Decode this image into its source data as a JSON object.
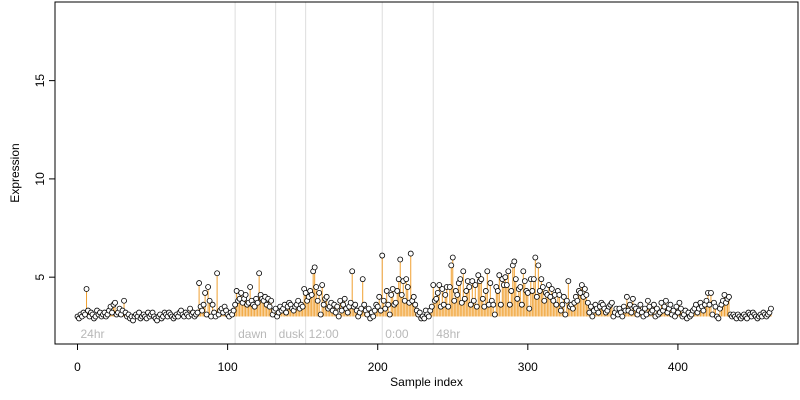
{
  "chart_data": {
    "type": "scatter",
    "xlabel": "Sample index",
    "ylabel": "Expression",
    "xlim": [
      -15,
      480
    ],
    "ylim": [
      1.6,
      19.0
    ],
    "xticks": [
      0,
      100,
      200,
      300,
      400
    ],
    "yticks": [
      5,
      10,
      15
    ],
    "baseline": 3.0,
    "colors": {
      "up": "#f0a030",
      "down": "#8fb4e3",
      "divider": "#dddddd",
      "point_stroke": "#000000",
      "point_fill": "#ffffff"
    },
    "groups": [
      {
        "label": "24hr",
        "start": 0
      },
      {
        "label": "dawn",
        "start": 105
      },
      {
        "label": "dusk",
        "start": 132
      },
      {
        "label": "12:00",
        "start": 152
      },
      {
        "label": "0:00",
        "start": 203
      },
      {
        "label": "48hr",
        "start": 237
      }
    ],
    "dividers": [
      105,
      132,
      152,
      203,
      237
    ],
    "x_start": 0,
    "values": [
      3.0,
      2.9,
      3.1,
      3.0,
      3.2,
      3.1,
      4.4,
      3.3,
      3.0,
      3.2,
      3.1,
      2.9,
      3.0,
      3.3,
      3.1,
      3.2,
      3.0,
      3.1,
      3.2,
      3.0,
      3.1,
      3.3,
      3.5,
      3.2,
      3.6,
      3.7,
      3.1,
      3.2,
      3.4,
      3.1,
      3.3,
      3.8,
      3.2,
      3.0,
      3.1,
      2.9,
      3.0,
      2.8,
      3.0,
      3.1,
      3.0,
      3.2,
      2.9,
      3.0,
      3.1,
      3.0,
      2.9,
      3.2,
      3.0,
      3.1,
      3.2,
      3.0,
      2.9,
      2.8,
      3.0,
      3.1,
      2.9,
      3.0,
      3.2,
      3.1,
      3.0,
      3.2,
      3.1,
      3.0,
      2.9,
      3.0,
      3.1,
      3.0,
      3.2,
      3.3,
      3.1,
      3.0,
      3.2,
      3.1,
      3.0,
      3.4,
      3.1,
      3.2,
      3.0,
      3.1,
      3.2,
      4.7,
      3.5,
      3.3,
      3.6,
      4.2,
      3.1,
      4.5,
      3.8,
      3.0,
      3.6,
      3.2,
      3.0,
      5.2,
      3.1,
      3.3,
      3.4,
      3.2,
      3.5,
      3.3,
      3.1,
      3.0,
      3.2,
      3.1,
      3.3,
      3.6,
      4.3,
      3.8,
      3.9,
      4.2,
      3.7,
      3.9,
      4.1,
      3.6,
      3.7,
      4.5,
      3.8,
      3.6,
      3.5,
      3.9,
      3.7,
      5.2,
      4.1,
      3.9,
      3.8,
      4.0,
      3.6,
      3.9,
      3.5,
      3.8,
      3.1,
      3.3,
      3.4,
      3.0,
      3.2,
      3.5,
      3.3,
      3.4,
      3.6,
      3.2,
      3.5,
      3.7,
      3.6,
      3.4,
      3.3,
      3.5,
      3.6,
      3.8,
      3.4,
      3.6,
      3.5,
      4.4,
      4.2,
      3.8,
      4.0,
      4.3,
      4.1,
      5.3,
      5.5,
      4.5,
      3.8,
      4.2,
      3.1,
      4.6,
      3.6,
      3.9,
      4.0,
      3.4,
      3.5,
      3.7,
      3.3,
      3.6,
      3.2,
      3.5,
      3.0,
      3.8,
      3.3,
      3.6,
      3.9,
      3.4,
      3.2,
      3.5,
      3.7,
      5.3,
      3.5,
      3.6,
      3.3,
      3.0,
      3.2,
      3.4,
      4.9,
      3.6,
      3.3,
      3.1,
      3.4,
      2.9,
      3.2,
      3.0,
      3.3,
      3.6,
      3.5,
      4.0,
      3.3,
      6.1,
      3.8,
      3.4,
      4.3,
      3.6,
      3.1,
      4.1,
      4.4,
      3.6,
      3.7,
      4.3,
      4.9,
      5.9,
      4.1,
      4.8,
      3.8,
      4.9,
      4.5,
      3.7,
      6.2,
      3.8,
      4.0,
      3.6,
      3.3,
      3.1,
      3.2,
      2.9,
      3.0,
      2.9,
      3.3,
      3.1,
      3.0,
      3.3,
      3.5,
      4.6,
      3.8,
      3.9,
      4.2,
      4.6,
      3.5,
      4.4,
      3.6,
      4.1,
      4.5,
      3.5,
      4.5,
      5.6,
      6.0,
      3.8,
      4.3,
      4.1,
      4.7,
      4.9,
      3.7,
      5.3,
      3.9,
      4.3,
      4.8,
      4.5,
      3.6,
      4.8,
      3.8,
      4.6,
      3.5,
      5.1,
      4.8,
      4.9,
      3.9,
      3.5,
      4.3,
      5.3,
      3.6,
      4.7,
      3.8,
      3.6,
      3.1,
      4.5,
      4.3,
      5.1,
      3.6,
      4.9,
      4.6,
      5.0,
      4.6,
      5.3,
      3.6,
      4.3,
      5.6,
      5.8,
      4.9,
      3.9,
      4.4,
      4.5,
      3.6,
      5.3,
      4.8,
      4.3,
      4.2,
      3.4,
      4.9,
      4.3,
      4.9,
      6.0,
      4.0,
      5.6,
      4.3,
      4.9,
      4.5,
      3.8,
      4.2,
      4.1,
      4.6,
      4.0,
      4.4,
      3.8,
      4.1,
      3.6,
      4.3,
      4.1,
      3.3,
      3.6,
      4.0,
      3.1,
      3.8,
      4.8,
      3.5,
      3.6,
      3.4,
      3.7,
      4.0,
      3.8,
      4.3,
      4.2,
      4.6,
      4.0,
      4.4,
      4.1,
      3.7,
      3.2,
      3.5,
      3.0,
      3.3,
      3.6,
      3.4,
      3.2,
      3.5,
      3.7,
      3.6,
      3.4,
      3.2,
      3.3,
      3.5,
      3.6,
      3.7,
      3.0,
      3.2,
      3.4,
      3.1,
      3.4,
      3.2,
      3.0,
      3.5,
      3.3,
      4.0,
      3.3,
      3.6,
      3.2,
      3.9,
      3.5,
      3.4,
      3.1,
      3.3,
      3.6,
      3.2,
      3.0,
      3.4,
      3.1,
      3.8,
      3.5,
      3.2,
      3.3,
      3.6,
      3.0,
      3.4,
      3.1,
      3.2,
      3.7,
      3.3,
      3.5,
      3.8,
      3.2,
      3.4,
      3.6,
      3.1,
      3.3,
      3.0,
      3.5,
      3.2,
      3.7,
      3.4,
      3.0,
      3.1,
      3.3,
      2.9,
      3.2,
      3.0,
      3.1,
      3.3,
      3.4,
      3.6,
      3.2,
      3.4,
      3.7,
      3.5,
      3.3,
      3.6,
      3.8,
      4.2,
      3.6,
      4.2,
      3.1,
      3.7,
      3.5,
      3.0,
      2.9,
      3.4,
      3.6,
      3.8,
      4.1,
      3.7,
      3.9,
      4.0,
      3.1,
      3.0,
      3.1,
      3.0,
      2.9,
      3.1,
      3.0,
      2.9,
      3.0,
      3.1,
      3.0,
      2.9,
      3.2,
      3.1,
      3.0,
      3.2,
      3.1,
      3.0,
      2.9,
      3.0,
      3.1,
      3.0,
      3.2,
      3.1,
      3.0,
      3.1,
      3.2,
      3.4
    ]
  }
}
